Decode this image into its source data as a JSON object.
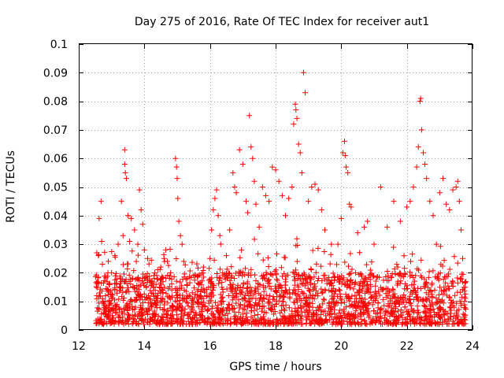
{
  "chart_data": {
    "type": "scatter",
    "title": "Day 275 of 2016, Rate Of TEC Index for receiver aut1",
    "xlabel": "GPS time / hours",
    "ylabel": "ROTI / TECUs",
    "xlim": [
      12,
      24
    ],
    "ylim": [
      0,
      0.1
    ],
    "xticks": [
      12,
      14,
      16,
      18,
      20,
      22,
      24
    ],
    "xtick_labels": [
      "12",
      "14",
      "16",
      "18",
      "20",
      "22",
      "24"
    ],
    "yticks": [
      0,
      0.01,
      0.02,
      0.03,
      0.04,
      0.05,
      0.06,
      0.07,
      0.08,
      0.09,
      0.1
    ],
    "ytick_labels": [
      "0",
      "0.01",
      "0.02",
      "0.03",
      "0.04",
      "0.05",
      "0.06",
      "0.07",
      "0.08",
      "0.09",
      "0.1"
    ],
    "grid": true,
    "marker": "+",
    "series": [
      {
        "name": "aut1",
        "color": "#ff0000",
        "points": [
          [
            12.55,
            0.027
          ],
          [
            12.6,
            0.026
          ],
          [
            12.62,
            0.039
          ],
          [
            12.68,
            0.045
          ],
          [
            12.7,
            0.031
          ],
          [
            12.72,
            0.023
          ],
          [
            12.9,
            0.024
          ],
          [
            13.0,
            0.02
          ],
          [
            13.1,
            0.026
          ],
          [
            13.2,
            0.03
          ],
          [
            13.3,
            0.045
          ],
          [
            13.35,
            0.033
          ],
          [
            13.4,
            0.063
          ],
          [
            13.4,
            0.058
          ],
          [
            13.42,
            0.055
          ],
          [
            13.45,
            0.053
          ],
          [
            13.5,
            0.04
          ],
          [
            13.55,
            0.031
          ],
          [
            13.6,
            0.039
          ],
          [
            13.7,
            0.035
          ],
          [
            13.8,
            0.03
          ],
          [
            13.85,
            0.049
          ],
          [
            13.9,
            0.042
          ],
          [
            13.95,
            0.037
          ],
          [
            14.0,
            0.028
          ],
          [
            14.1,
            0.025
          ],
          [
            14.3,
            0.018
          ],
          [
            14.5,
            0.022
          ],
          [
            14.6,
            0.025
          ],
          [
            14.65,
            0.028
          ],
          [
            14.7,
            0.024
          ],
          [
            14.8,
            0.02
          ],
          [
            14.95,
            0.06
          ],
          [
            14.98,
            0.057
          ],
          [
            15.0,
            0.053
          ],
          [
            15.02,
            0.046
          ],
          [
            15.05,
            0.038
          ],
          [
            15.1,
            0.033
          ],
          [
            15.15,
            0.03
          ],
          [
            15.2,
            0.024
          ],
          [
            15.5,
            0.019
          ],
          [
            15.8,
            0.022
          ],
          [
            16.0,
            0.025
          ],
          [
            16.05,
            0.035
          ],
          [
            16.1,
            0.042
          ],
          [
            16.15,
            0.046
          ],
          [
            16.2,
            0.049
          ],
          [
            16.25,
            0.04
          ],
          [
            16.3,
            0.033
          ],
          [
            16.5,
            0.026
          ],
          [
            16.6,
            0.035
          ],
          [
            16.7,
            0.055
          ],
          [
            16.75,
            0.05
          ],
          [
            16.8,
            0.048
          ],
          [
            16.9,
            0.063
          ],
          [
            17.0,
            0.058
          ],
          [
            17.1,
            0.045
          ],
          [
            17.15,
            0.041
          ],
          [
            17.2,
            0.075
          ],
          [
            17.25,
            0.064
          ],
          [
            17.3,
            0.06
          ],
          [
            17.35,
            0.052
          ],
          [
            17.4,
            0.044
          ],
          [
            17.5,
            0.036
          ],
          [
            17.6,
            0.05
          ],
          [
            17.7,
            0.047
          ],
          [
            17.8,
            0.045
          ],
          [
            17.9,
            0.057
          ],
          [
            18.0,
            0.056
          ],
          [
            18.1,
            0.052
          ],
          [
            18.2,
            0.047
          ],
          [
            18.3,
            0.04
          ],
          [
            18.4,
            0.046
          ],
          [
            18.5,
            0.05
          ],
          [
            18.55,
            0.072
          ],
          [
            18.6,
            0.079
          ],
          [
            18.62,
            0.077
          ],
          [
            18.65,
            0.074
          ],
          [
            18.7,
            0.065
          ],
          [
            18.75,
            0.062
          ],
          [
            18.8,
            0.055
          ],
          [
            18.85,
            0.09
          ],
          [
            18.9,
            0.083
          ],
          [
            19.0,
            0.045
          ],
          [
            19.1,
            0.05
          ],
          [
            19.2,
            0.051
          ],
          [
            19.3,
            0.049
          ],
          [
            19.4,
            0.042
          ],
          [
            19.5,
            0.035
          ],
          [
            19.7,
            0.03
          ],
          [
            19.9,
            0.03
          ],
          [
            20.0,
            0.039
          ],
          [
            20.05,
            0.062
          ],
          [
            20.1,
            0.066
          ],
          [
            20.12,
            0.061
          ],
          [
            20.15,
            0.057
          ],
          [
            20.2,
            0.055
          ],
          [
            20.25,
            0.044
          ],
          [
            20.3,
            0.043
          ],
          [
            20.5,
            0.034
          ],
          [
            20.7,
            0.036
          ],
          [
            20.8,
            0.038
          ],
          [
            21.0,
            0.03
          ],
          [
            21.2,
            0.05
          ],
          [
            21.4,
            0.036
          ],
          [
            21.6,
            0.045
          ],
          [
            21.8,
            0.038
          ],
          [
            22.0,
            0.043
          ],
          [
            22.1,
            0.045
          ],
          [
            22.2,
            0.05
          ],
          [
            22.3,
            0.057
          ],
          [
            22.35,
            0.064
          ],
          [
            22.4,
            0.08
          ],
          [
            22.42,
            0.081
          ],
          [
            22.45,
            0.07
          ],
          [
            22.5,
            0.062
          ],
          [
            22.55,
            0.058
          ],
          [
            22.6,
            0.053
          ],
          [
            22.7,
            0.045
          ],
          [
            22.8,
            0.04
          ],
          [
            22.9,
            0.03
          ],
          [
            23.0,
            0.048
          ],
          [
            23.1,
            0.053
          ],
          [
            23.2,
            0.044
          ],
          [
            23.3,
            0.042
          ],
          [
            23.4,
            0.049
          ],
          [
            23.5,
            0.05
          ],
          [
            23.55,
            0.052
          ],
          [
            23.6,
            0.045
          ],
          [
            23.65,
            0.035
          ],
          [
            23.7,
            0.025
          ]
        ],
        "dense_band": {
          "x_range": [
            12.5,
            23.8
          ],
          "y_range": [
            0.002,
            0.02
          ],
          "note": "thousands of overlapping points concentrated between 0.004 and 0.015 TECU"
        }
      }
    ]
  }
}
